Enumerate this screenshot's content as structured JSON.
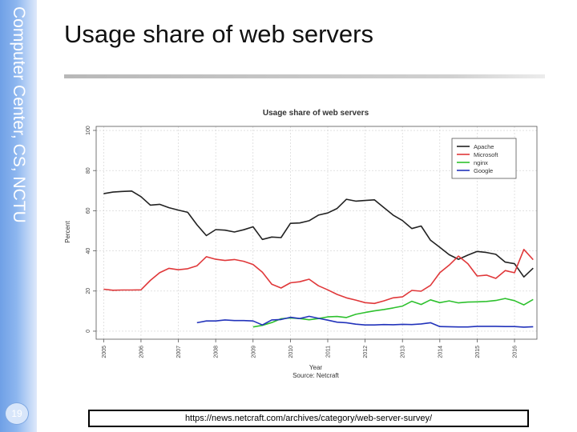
{
  "slide": {
    "sidebar_text": "Computer Center, CS, NCTU",
    "title": "Usage share of web servers",
    "page_number": "19",
    "source_url": "https://news.netcraft.com/archives/category/web-server-survey/"
  },
  "colors": {
    "Apache": "#222222",
    "Microsoft": "#e0383a",
    "nginx": "#2ec12e",
    "Google": "#2233bb"
  },
  "chart_data": {
    "type": "line",
    "title": "Usage share of web servers",
    "xlabel": "Year",
    "ylabel": "Percent",
    "source_note": "Source:  Netcraft",
    "xlim": [
      2004.8,
      2016.6
    ],
    "ylim": [
      -4,
      102
    ],
    "x_ticks": [
      2005,
      2006,
      2007,
      2008,
      2009,
      2010,
      2011,
      2012,
      2013,
      2014,
      2015,
      2016
    ],
    "y_ticks": [
      0,
      20,
      40,
      60,
      80,
      100
    ],
    "grid": true,
    "legend_position": "top-right",
    "series": [
      {
        "name": "Apache",
        "x": [
          2005.0,
          2005.25,
          2005.5,
          2005.75,
          2006.0,
          2006.25,
          2006.5,
          2006.75,
          2007.0,
          2007.25,
          2007.5,
          2007.75,
          2008.0,
          2008.25,
          2008.5,
          2008.75,
          2009.0,
          2009.25,
          2009.5,
          2009.75,
          2010.0,
          2010.25,
          2010.5,
          2010.75,
          2011.0,
          2011.25,
          2011.5,
          2011.75,
          2012.0,
          2012.25,
          2012.5,
          2012.75,
          2013.0,
          2013.25,
          2013.5,
          2013.75,
          2014.0,
          2014.25,
          2014.5,
          2014.75,
          2015.0,
          2015.25,
          2015.5,
          2015.75,
          2016.0,
          2016.25,
          2016.5
        ],
        "values": [
          68.5,
          69.3,
          69.6,
          69.8,
          67,
          62.8,
          63.2,
          61.5,
          60.3,
          59.2,
          53,
          47.6,
          50.6,
          50.3,
          49.4,
          50.5,
          52,
          45.7,
          46.9,
          46.6,
          53.7,
          53.9,
          55,
          57.8,
          58.9,
          61.1,
          65.7,
          64.8,
          65.1,
          65.4,
          61.6,
          57.8,
          55.1,
          51.1,
          52.4,
          45.3,
          41.8,
          38.1,
          35.8,
          37.9,
          39.7,
          39.2,
          38.3,
          34.4,
          33.6,
          27,
          31.4
        ]
      },
      {
        "name": "Microsoft",
        "x": [
          2005.0,
          2005.25,
          2005.5,
          2005.75,
          2006.0,
          2006.25,
          2006.5,
          2006.75,
          2007.0,
          2007.25,
          2007.5,
          2007.75,
          2008.0,
          2008.25,
          2008.5,
          2008.75,
          2009.0,
          2009.25,
          2009.5,
          2009.75,
          2010.0,
          2010.25,
          2010.5,
          2010.75,
          2011.0,
          2011.25,
          2011.5,
          2011.75,
          2012.0,
          2012.25,
          2012.5,
          2012.75,
          2013.0,
          2013.25,
          2013.5,
          2013.75,
          2014.0,
          2014.25,
          2014.5,
          2014.75,
          2015.0,
          2015.25,
          2015.5,
          2015.75,
          2016.0,
          2016.25,
          2016.5
        ],
        "values": [
          20.9,
          20.4,
          20.5,
          20.5,
          20.6,
          25.3,
          29.1,
          31.3,
          30.6,
          31.1,
          32.6,
          37.1,
          35.8,
          35.2,
          35.7,
          34.8,
          33.2,
          29.4,
          23.4,
          21.5,
          24.1,
          24.6,
          25.9,
          22.6,
          20.6,
          18.3,
          16.6,
          15.5,
          14.2,
          13.8,
          15.1,
          16.6,
          17.1,
          20.3,
          19.9,
          22.8,
          29.1,
          32.9,
          37.4,
          33.6,
          27.5,
          27.9,
          26.3,
          30.2,
          29.1,
          40.7,
          35.6
        ]
      },
      {
        "name": "nginx",
        "x": [
          2009.0,
          2009.25,
          2009.5,
          2009.75,
          2010.0,
          2010.25,
          2010.5,
          2010.75,
          2011.0,
          2011.25,
          2011.5,
          2011.75,
          2012.0,
          2012.25,
          2012.5,
          2012.75,
          2013.0,
          2013.25,
          2013.5,
          2013.75,
          2014.0,
          2014.25,
          2014.5,
          2014.75,
          2015.0,
          2015.25,
          2015.5,
          2015.75,
          2016.0,
          2016.25,
          2016.5
        ],
        "values": [
          2.1,
          2.9,
          4.3,
          6.2,
          6.6,
          6.3,
          5.7,
          6.3,
          7.1,
          7.3,
          6.8,
          8.4,
          9.3,
          10.1,
          10.8,
          11.6,
          12.5,
          14.9,
          13.3,
          15.6,
          14.2,
          15.1,
          14.1,
          14.5,
          14.6,
          14.8,
          15.3,
          16.3,
          15.2,
          13.1,
          15.8
        ]
      },
      {
        "name": "Google",
        "x": [
          2007.5,
          2007.75,
          2008.0,
          2008.25,
          2008.5,
          2008.75,
          2009.0,
          2009.25,
          2009.5,
          2009.75,
          2010.0,
          2010.25,
          2010.5,
          2010.75,
          2011.0,
          2011.25,
          2011.5,
          2011.75,
          2012.0,
          2012.25,
          2012.5,
          2012.75,
          2013.0,
          2013.25,
          2013.5,
          2013.75,
          2014.0,
          2014.25,
          2014.5,
          2014.75,
          2015.0,
          2015.25,
          2015.5,
          2015.75,
          2016.0,
          2016.25,
          2016.5
        ],
        "values": [
          4.2,
          5.1,
          5.1,
          5.6,
          5.3,
          5.3,
          5.1,
          3.1,
          5.6,
          5.8,
          6.9,
          6.3,
          7.4,
          6.4,
          5.5,
          4.5,
          4.2,
          3.5,
          3.1,
          3.1,
          3.3,
          3.2,
          3.4,
          3.3,
          3.6,
          4.2,
          2.3,
          2.2,
          2.1,
          2.1,
          2.4,
          2.4,
          2.4,
          2.3,
          2.3,
          2.0,
          2.2
        ]
      }
    ]
  }
}
